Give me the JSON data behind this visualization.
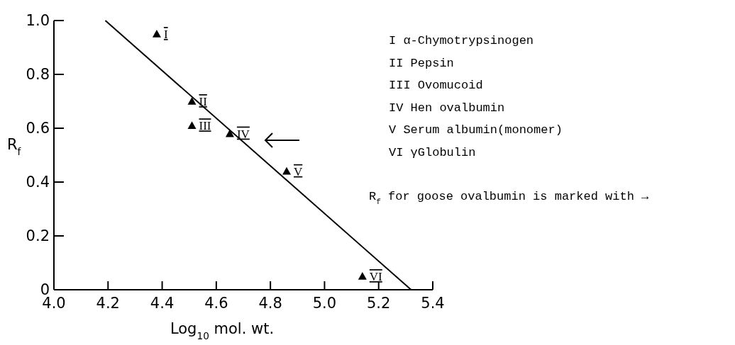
{
  "chart_data": {
    "type": "scatter",
    "xlabel": "Log$_{10}$ mol. wt.",
    "ylabel": "R$_{f}$",
    "xlim": [
      4.0,
      5.4
    ],
    "ylim": [
      0,
      1.0
    ],
    "xticks": [
      {
        "value": 4.0,
        "label": "4.0"
      },
      4.2,
      4.4,
      4.6,
      4.8,
      {
        "value": 5.0,
        "label": "5.0"
      },
      5.2,
      5.4
    ],
    "yticks": [
      0,
      0.2,
      0.4,
      0.6,
      0.8,
      {
        "value": 1.0,
        "label": "1.0"
      }
    ],
    "series": [
      {
        "type": "scatter",
        "marker": "triangle",
        "color": "#000000",
        "x": [
          4.38,
          4.51,
          4.51,
          4.65,
          4.86,
          5.14
        ],
        "values": [
          0.95,
          0.7,
          0.61,
          0.58,
          0.44,
          0.05
        ],
        "value_labels": [
          "I",
          "II",
          "III",
          "IV",
          "V",
          "VI"
        ]
      },
      {
        "type": "line",
        "marker": "none",
        "color": "#000000",
        "x": [
          4.19,
          5.32
        ],
        "values": [
          1.0,
          0
        ]
      }
    ],
    "annotations": [
      "I α-Chymotrypsinogen",
      "II Pepsin",
      "III Ovomucoid",
      "IV Hen ovalbumin",
      "V Serum albumin(monomer)",
      "VI γGlobulin",
      "R$_{f}$ for goose ovalbumin is marked with →"
    ]
  }
}
